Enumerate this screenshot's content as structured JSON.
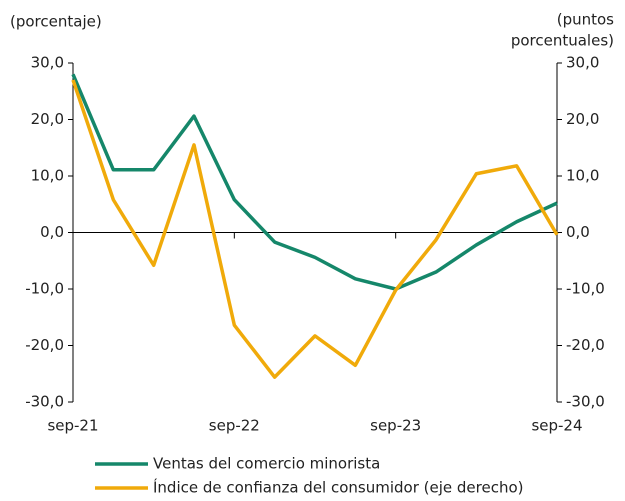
{
  "chart_data": {
    "type": "line",
    "ylabel": "(porcentaje)",
    "y2label": [
      "(puntos",
      "porcentuales)"
    ],
    "categories": [
      "sep-21",
      null,
      null,
      null,
      "sep-22",
      null,
      null,
      null,
      "sep-23",
      null,
      null,
      null,
      "sep-24"
    ],
    "series": [
      {
        "name": "Ventas del comercio minorista",
        "color": "#15876a",
        "values": [
          28.0,
          11.1,
          11.1,
          20.6,
          5.8,
          -1.7,
          -4.4,
          -8.2,
          -10.0,
          -7.0,
          -2.2,
          1.9,
          5.2
        ]
      },
      {
        "name": "Índice de confianza del consumidor (eje derecho)",
        "color": "#f0aa0a",
        "axis": "y2",
        "values": [
          27.0,
          5.8,
          -5.8,
          15.5,
          -16.4,
          -25.6,
          -18.3,
          -23.5,
          -10.2,
          -1.3,
          10.4,
          11.8,
          -0.4
        ]
      }
    ],
    "ylim": [
      -30,
      30
    ],
    "yticks": [
      {
        "value": 30,
        "label": "30,0"
      },
      {
        "value": 20,
        "label": "20,0"
      },
      {
        "value": 10,
        "label": "10,0"
      },
      {
        "value": 0,
        "label": "0,0"
      },
      {
        "value": -10,
        "label": "-10,0"
      },
      {
        "value": -20,
        "label": "-20,0"
      },
      {
        "value": -30,
        "label": "-30,0"
      }
    ],
    "y2lim": [
      -30,
      30
    ],
    "y2ticks": [
      {
        "value": 30,
        "label": "30,0"
      },
      {
        "value": 20,
        "label": "20,0"
      },
      {
        "value": 10,
        "label": "10,0"
      },
      {
        "value": 0,
        "label": "0,0"
      },
      {
        "value": -10,
        "label": "-10,0"
      },
      {
        "value": -20,
        "label": "-20,0"
      },
      {
        "value": -30,
        "label": "-30,0"
      }
    ]
  }
}
